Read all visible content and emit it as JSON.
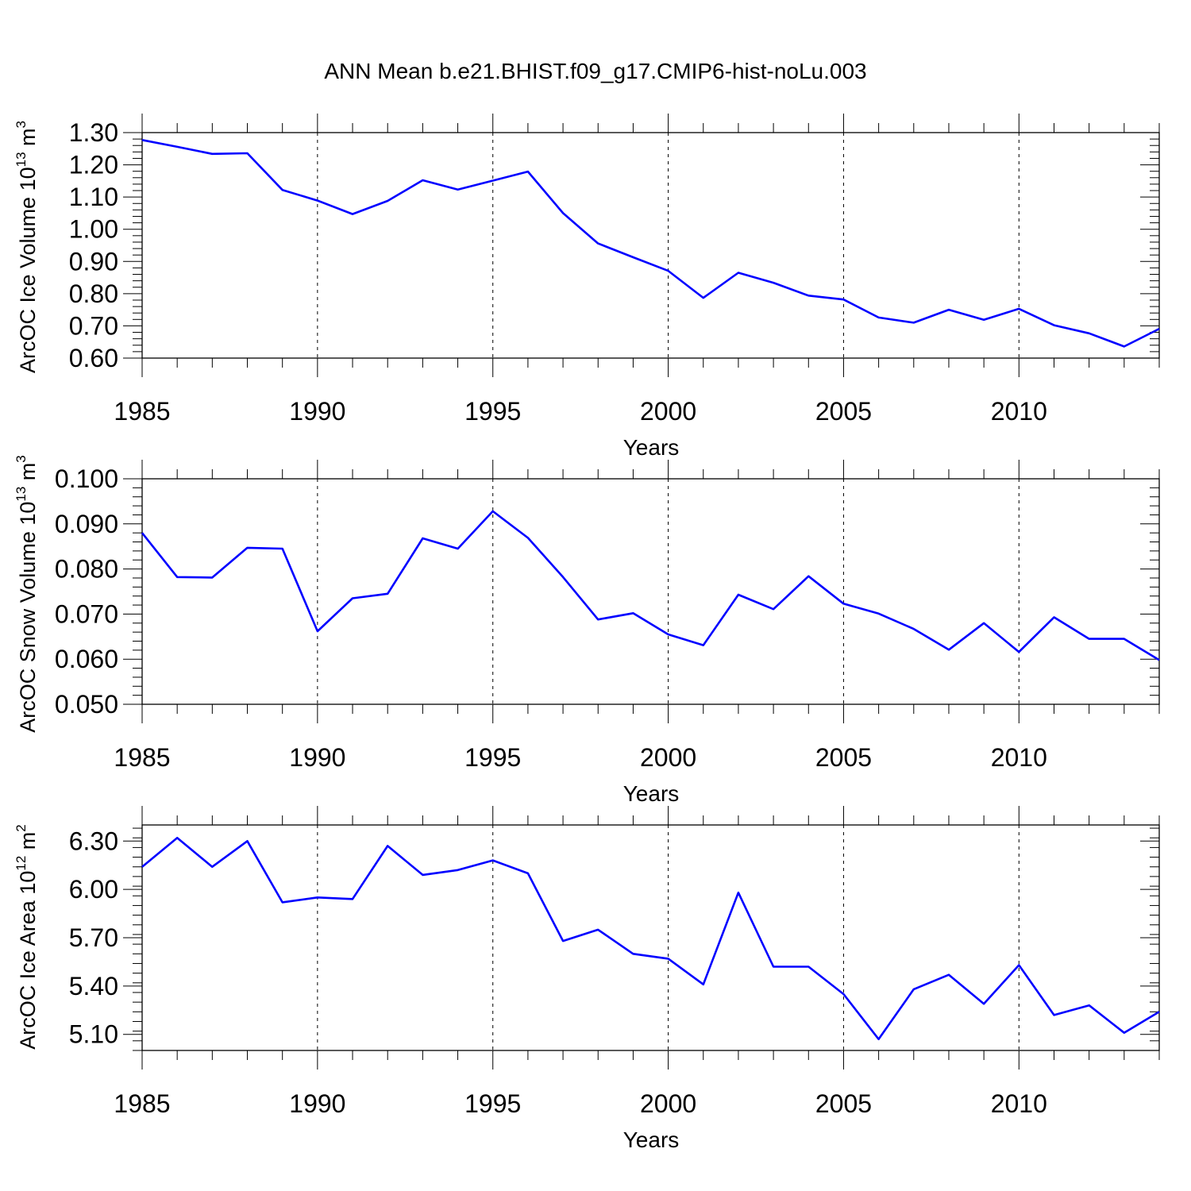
{
  "title": "ANN Mean b.e21.BHIST.f09_g17.CMIP6-hist-noLu.003",
  "series_color": "#0000ff",
  "chart_data": [
    {
      "type": "line",
      "ylabel_main": "ArcOC Ice Volume 10",
      "ylabel_exp": "13",
      "ylabel_unit": "m",
      "ylabel_unit_exp": "3",
      "xlabel": "Years",
      "xlim": [
        1985,
        2014
      ],
      "ylim": [
        0.6,
        1.3
      ],
      "yticks": [
        0.6,
        0.7,
        0.8,
        0.9,
        1.0,
        1.1,
        1.2,
        1.3
      ],
      "ytick_labels": [
        "0.60",
        "0.70",
        "0.80",
        "0.90",
        "1.00",
        "1.10",
        "1.20",
        "1.30"
      ],
      "xticks": [
        1985,
        1990,
        1995,
        2000,
        2005,
        2010
      ],
      "xtick_labels": [
        "1985",
        "1990",
        "1995",
        "2000",
        "2005",
        "2010"
      ],
      "x": [
        1985,
        1986,
        1987,
        1988,
        1989,
        1990,
        1991,
        1992,
        1993,
        1994,
        1995,
        1996,
        1997,
        1998,
        1999,
        2000,
        2001,
        2002,
        2003,
        2004,
        2005,
        2006,
        2007,
        2008,
        2009,
        2010,
        2011,
        2012,
        2013,
        2014
      ],
      "values": [
        1.277,
        1.256,
        1.234,
        1.236,
        1.122,
        1.089,
        1.047,
        1.088,
        1.152,
        1.123,
        1.151,
        1.179,
        1.05,
        0.956,
        0.913,
        0.871,
        0.787,
        0.865,
        0.834,
        0.794,
        0.782,
        0.726,
        0.71,
        0.75,
        0.719,
        0.753,
        0.702,
        0.677,
        0.636,
        0.691
      ]
    },
    {
      "type": "line",
      "ylabel_main": "ArcOC Snow Volume 10",
      "ylabel_exp": "13",
      "ylabel_unit": "m",
      "ylabel_unit_exp": "3",
      "xlabel": "Years",
      "xlim": [
        1985,
        2014
      ],
      "ylim": [
        0.05,
        0.1
      ],
      "yticks": [
        0.05,
        0.06,
        0.07,
        0.08,
        0.09,
        0.1
      ],
      "ytick_labels": [
        "0.050",
        "0.060",
        "0.070",
        "0.080",
        "0.090",
        "0.100"
      ],
      "xticks": [
        1985,
        1990,
        1995,
        2000,
        2005,
        2010
      ],
      "xtick_labels": [
        "1985",
        "1990",
        "1995",
        "2000",
        "2005",
        "2010"
      ],
      "x": [
        1985,
        1986,
        1987,
        1988,
        1989,
        1990,
        1991,
        1992,
        1993,
        1994,
        1995,
        1996,
        1997,
        1998,
        1999,
        2000,
        2001,
        2002,
        2003,
        2004,
        2005,
        2006,
        2007,
        2008,
        2009,
        2010,
        2011,
        2012,
        2013,
        2014
      ],
      "values": [
        0.088,
        0.0782,
        0.0781,
        0.0847,
        0.0845,
        0.0662,
        0.0735,
        0.0745,
        0.0868,
        0.0845,
        0.0928,
        0.0869,
        0.0782,
        0.0688,
        0.0702,
        0.0655,
        0.0631,
        0.0743,
        0.0711,
        0.0784,
        0.0723,
        0.0701,
        0.0667,
        0.0621,
        0.068,
        0.0616,
        0.0693,
        0.0645,
        0.0645,
        0.0598
      ]
    },
    {
      "type": "line",
      "ylabel_main": "ArcOC Ice Area 10",
      "ylabel_exp": "12",
      "ylabel_unit": "m",
      "ylabel_unit_exp": "2",
      "xlabel": "Years",
      "xlim": [
        1985,
        2014
      ],
      "ylim": [
        5.0,
        6.4
      ],
      "yticks": [
        5.1,
        5.4,
        5.7,
        6.0,
        6.3
      ],
      "ytick_labels": [
        "5.10",
        "5.40",
        "5.70",
        "6.00",
        "6.30"
      ],
      "xticks": [
        1985,
        1990,
        1995,
        2000,
        2005,
        2010
      ],
      "xtick_labels": [
        "1985",
        "1990",
        "1995",
        "2000",
        "2005",
        "2010"
      ],
      "x": [
        1985,
        1986,
        1987,
        1988,
        1989,
        1990,
        1991,
        1992,
        1993,
        1994,
        1995,
        1996,
        1997,
        1998,
        1999,
        2000,
        2001,
        2002,
        2003,
        2004,
        2005,
        2006,
        2007,
        2008,
        2009,
        2010,
        2011,
        2012,
        2013,
        2014
      ],
      "values": [
        6.14,
        6.32,
        6.14,
        6.3,
        5.92,
        5.95,
        5.94,
        6.27,
        6.09,
        6.12,
        6.18,
        6.1,
        5.68,
        5.75,
        5.6,
        5.57,
        5.41,
        5.98,
        5.52,
        5.52,
        5.35,
        5.07,
        5.38,
        5.47,
        5.29,
        5.53,
        5.22,
        5.28,
        5.11,
        5.24
      ]
    }
  ]
}
